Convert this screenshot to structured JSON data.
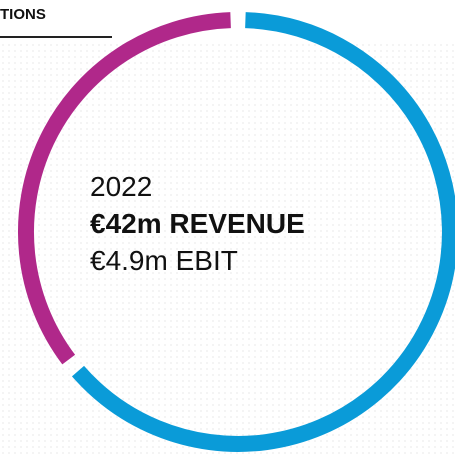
{
  "header": {
    "title": "TIONS"
  },
  "summary": {
    "year": "2022",
    "revenue": "€42m REVENUE",
    "ebit": "€4.9m EBIT"
  }
}
